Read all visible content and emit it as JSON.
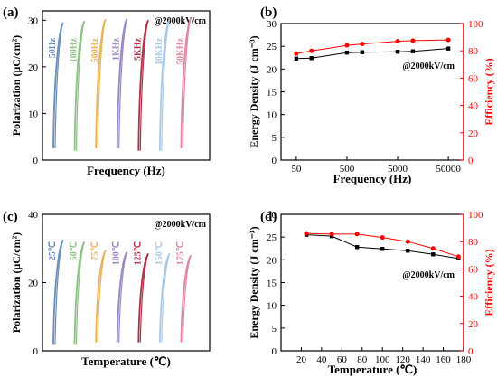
{
  "chart_data": [
    {
      "panel": "(a)",
      "type": "line",
      "annotation": "@2000kV/cm",
      "xlabel": "Frequency (Hz)",
      "ylabel": "Polarization (μC/cm²)",
      "ylim": [
        0,
        32
      ],
      "yticks": [
        "0",
        "10",
        "20",
        "30"
      ],
      "series": [
        {
          "name": "50Hz",
          "color": "#6a8fb8",
          "pmin": 2.5,
          "pmax": 29.5
        },
        {
          "name": "100Hz",
          "color": "#8fbf86",
          "pmin": 2.0,
          "pmax": 29.8
        },
        {
          "name": "500Hz",
          "color": "#e8b35a",
          "pmin": 2.5,
          "pmax": 30.2
        },
        {
          "name": "1KHz",
          "color": "#9a86c2",
          "pmin": 2.5,
          "pmax": 30.3
        },
        {
          "name": "5KHz",
          "color": "#b0304a",
          "pmin": 2.0,
          "pmax": 30.0
        },
        {
          "name": "10KHz",
          "color": "#a9c8e8",
          "pmin": 2.0,
          "pmax": 30.2
        },
        {
          "name": "50KHz",
          "color": "#e0889f",
          "pmin": 2.5,
          "pmax": 30.5
        }
      ]
    },
    {
      "panel": "(b)",
      "type": "line",
      "annotation": "@2000kV/cm",
      "xlabel": "Frequency (Hz)",
      "ylabel": "Energy Density (J cm⁻³)",
      "ylabel2": "Efficiency (%)",
      "categories": [
        "50",
        "100",
        "500",
        "1000",
        "5000",
        "10000",
        "50000"
      ],
      "xticks": [
        "50",
        "500",
        "5000",
        "50000"
      ],
      "ylim": [
        0,
        30
      ],
      "yticks": [
        "0",
        "5",
        "10",
        "15",
        "20",
        "25",
        "30"
      ],
      "ylim2": [
        0,
        100
      ],
      "yticks2": [
        "0",
        "20",
        "40",
        "60",
        "80",
        "100"
      ],
      "series": [
        {
          "axis": "left",
          "color": "#000000",
          "values": [
            22.3,
            22.4,
            23.6,
            23.7,
            23.8,
            23.9,
            24.5
          ]
        },
        {
          "axis": "right",
          "color": "#ff0000",
          "values": [
            78.0,
            80.0,
            84.0,
            85.0,
            87.0,
            87.5,
            88.0
          ]
        }
      ]
    },
    {
      "panel": "(c)",
      "type": "line",
      "annotation": "@2000kV/cm",
      "xlabel": "Temperature (℃)",
      "ylabel": "Polarization (μC/cm²)",
      "ylim": [
        0,
        40
      ],
      "yticks": [
        "0",
        "20",
        "40"
      ],
      "series": [
        {
          "name": "25℃",
          "color": "#6a8fb8",
          "pmin": 2.0,
          "pmax": 32.5
        },
        {
          "name": "50℃",
          "color": "#8fbf86",
          "pmin": 2.0,
          "pmax": 32.0
        },
        {
          "name": "75℃",
          "color": "#e8b35a",
          "pmin": 2.5,
          "pmax": 29.5
        },
        {
          "name": "100℃",
          "color": "#9a86c2",
          "pmin": 2.5,
          "pmax": 29.0
        },
        {
          "name": "125℃",
          "color": "#b0304a",
          "pmin": 2.5,
          "pmax": 28.5
        },
        {
          "name": "150℃",
          "color": "#a9c8e8",
          "pmin": 2.5,
          "pmax": 28.5
        },
        {
          "name": "175℃",
          "color": "#e0889f",
          "pmin": 2.5,
          "pmax": 28.0
        }
      ]
    },
    {
      "panel": "(d)",
      "type": "line",
      "annotation": "@2000kV/cm",
      "xlabel": "Temperature (℃)",
      "ylabel": "Energy Density (J cm⁻³)",
      "ylabel2": "Efficiency (%)",
      "xlim": [
        0,
        180
      ],
      "xticks": [
        "20",
        "40",
        "60",
        "80",
        "100",
        "120",
        "140",
        "160",
        "180"
      ],
      "ylim": [
        0,
        30
      ],
      "yticks": [
        "0",
        "5",
        "10",
        "15",
        "20",
        "25",
        "30"
      ],
      "ylim2": [
        0,
        100
      ],
      "yticks2": [
        "0",
        "20",
        "40",
        "60",
        "80",
        "100"
      ],
      "x": [
        25,
        50,
        75,
        100,
        125,
        150,
        175
      ],
      "series": [
        {
          "axis": "left",
          "color": "#000000",
          "values": [
            25.5,
            25.2,
            22.8,
            22.4,
            22.0,
            21.2,
            20.3
          ]
        },
        {
          "axis": "right",
          "color": "#ff0000",
          "values": [
            86.0,
            85.5,
            85.5,
            83.0,
            80.0,
            75.0,
            69.0
          ]
        }
      ]
    }
  ]
}
